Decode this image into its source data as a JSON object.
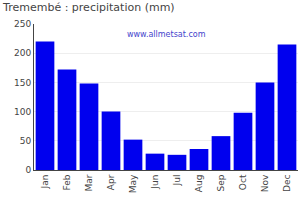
{
  "chart_data": {
    "type": "bar",
    "title": "Tremembé : precipitation (mm)",
    "categories": [
      "Jan",
      "Feb",
      "Mar",
      "Apr",
      "May",
      "Jun",
      "Jul",
      "Aug",
      "Sep",
      "Oct",
      "Nov",
      "Dec"
    ],
    "values": [
      220,
      172,
      148,
      100,
      52,
      28,
      26,
      36,
      58,
      98,
      150,
      215
    ],
    "color": "#0000ee",
    "ylim": [
      0,
      250
    ],
    "yticks": [
      0,
      50,
      100,
      150,
      200,
      250
    ],
    "grid": true,
    "annotations": [
      "www.allmetsat.com"
    ]
  }
}
